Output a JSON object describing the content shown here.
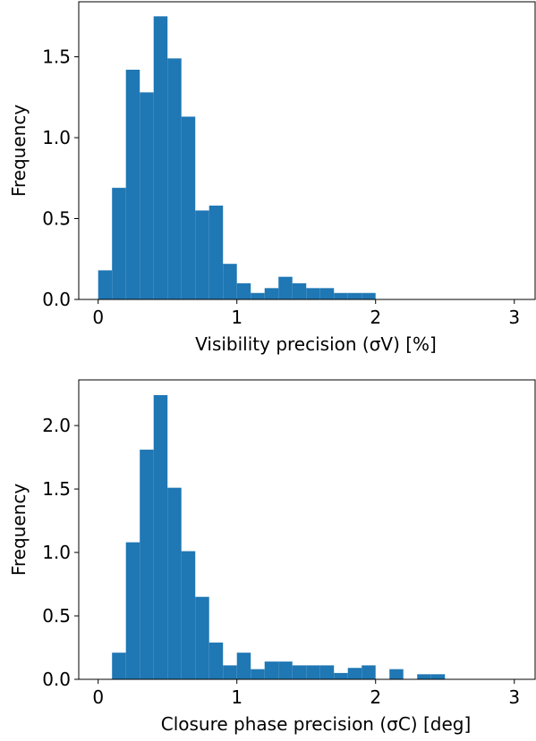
{
  "chart_data": [
    {
      "type": "histogram",
      "x_label": "Visibility precision (σV) [%]",
      "y_label": "Frequency",
      "color": "#1f77b4",
      "bins": [
        0.0,
        0.1,
        0.2,
        0.3,
        0.4,
        0.5,
        0.6,
        0.7,
        0.8,
        0.9,
        1.0,
        1.1,
        1.2,
        1.3,
        1.4,
        1.5,
        1.6,
        1.7,
        1.8,
        1.9,
        2.0
      ],
      "values": [
        0.18,
        0.69,
        1.42,
        1.28,
        1.75,
        1.49,
        1.13,
        0.55,
        0.58,
        0.22,
        0.1,
        0.04,
        0.07,
        0.14,
        0.1,
        0.07,
        0.07,
        0.04,
        0.04,
        0.04
      ],
      "xlim": [
        -0.14,
        3.15
      ],
      "xticks": [
        0,
        1,
        2,
        3
      ],
      "ylim": [
        0,
        1.84
      ],
      "yticks": [
        {
          "value": 0,
          "label": "0.0"
        },
        0.5,
        {
          "value": 1,
          "label": "1.0"
        },
        1.5
      ]
    },
    {
      "type": "histogram",
      "x_label": "Closure phase precision (σC) [deg]",
      "y_label": "Frequency",
      "color": "#1f77b4",
      "bins": [
        0.1,
        0.2,
        0.3,
        0.4,
        0.5,
        0.6,
        0.7,
        0.8,
        0.9,
        1.0,
        1.1,
        1.2,
        1.3,
        1.4,
        1.5,
        1.6,
        1.7,
        1.8,
        1.9,
        2.0,
        2.1,
        2.2,
        2.3,
        2.4,
        2.5
      ],
      "values": [
        0.21,
        1.08,
        1.81,
        2.24,
        1.51,
        1.01,
        0.65,
        0.29,
        0.11,
        0.21,
        0.08,
        0.14,
        0.14,
        0.11,
        0.11,
        0.11,
        0.05,
        0.09,
        0.11,
        0,
        0.08,
        0,
        0.04,
        0.04
      ],
      "xlim": [
        -0.14,
        3.15
      ],
      "xticks": [
        0,
        1,
        2,
        3
      ],
      "ylim": [
        0,
        2.36
      ],
      "yticks": [
        {
          "value": 0,
          "label": "0.0"
        },
        0.5,
        {
          "value": 1,
          "label": "1.0"
        },
        1.5,
        {
          "value": 2,
          "label": "2.0"
        }
      ]
    }
  ]
}
